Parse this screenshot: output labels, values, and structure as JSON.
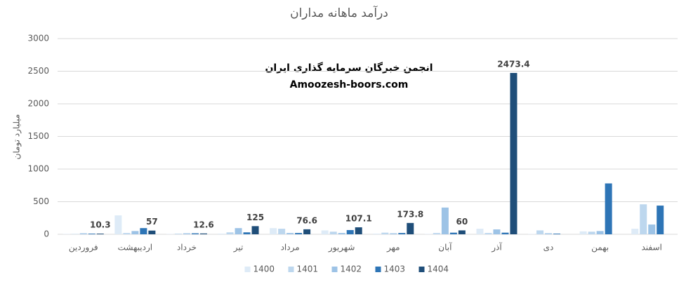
{
  "chart_data": {
    "type": "bar",
    "title": "درآمد ماهانه مداران",
    "y_label": "میلیارد تومان",
    "annotations": [
      "انجمن خبرگان سرمایه گذاری ایران",
      "Amoozesh-boors.com"
    ],
    "categories": [
      "فروردین",
      "اردیبهشت",
      "خرداد",
      "تیر",
      "مرداد",
      "شهریور",
      "مهر",
      "آبان",
      "آذر",
      "دی",
      "بهمن",
      "اسفند"
    ],
    "series": [
      {
        "name": "1400",
        "color": "#deebf7",
        "values": [
          5,
          290,
          5,
          10,
          95,
          60,
          10,
          5,
          85,
          5,
          45,
          85
        ]
      },
      {
        "name": "1401",
        "color": "#bdd7ee",
        "values": [
          5,
          20,
          10,
          30,
          85,
          40,
          25,
          20,
          20,
          60,
          40,
          460
        ]
      },
      {
        "name": "1402",
        "color": "#9dc3e6",
        "values": [
          15,
          50,
          15,
          95,
          20,
          20,
          15,
          410,
          75,
          15,
          50,
          150
        ]
      },
      {
        "name": "1403",
        "color": "#2e75b6",
        "values": [
          10,
          95,
          15,
          30,
          20,
          65,
          20,
          25,
          25,
          10,
          780,
          440
        ]
      },
      {
        "name": "1404",
        "color": "#1f4e79",
        "show_labels": true,
        "values": [
          10.3,
          57,
          12.6,
          125,
          76.6,
          107.1,
          173.8,
          60,
          2473.4,
          null,
          null,
          null
        ]
      }
    ],
    "ylim": [
      0,
      3000
    ],
    "yticks": [
      0,
      500,
      1000,
      1500,
      2000,
      2500,
      3000
    ],
    "grid": true,
    "legend": "bottom"
  }
}
